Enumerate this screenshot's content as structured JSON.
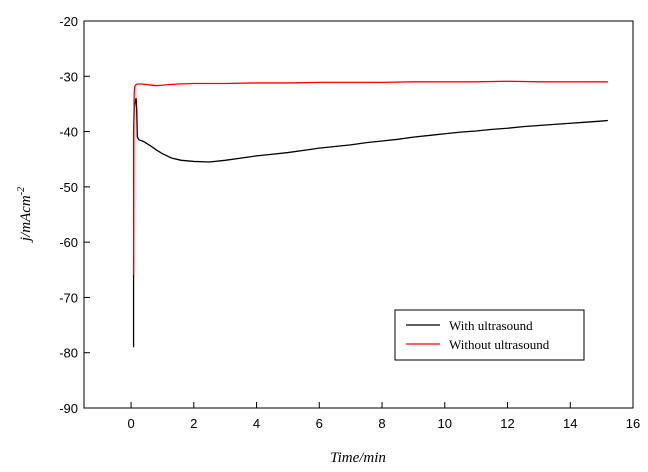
{
  "chart_data": {
    "type": "line",
    "xlabel": "Time/min",
    "ylabel": "j/mAcm",
    "ylabel_sup": "-2",
    "xlim": [
      -1.5,
      16
    ],
    "ylim": [
      -90,
      -20
    ],
    "xticks": [
      0,
      2,
      4,
      6,
      8,
      10,
      12,
      14,
      16
    ],
    "yticks": [
      -90,
      -80,
      -70,
      -60,
      -50,
      -40,
      -30,
      -20
    ],
    "grid": false,
    "legend_position": "bottom-right",
    "series": [
      {
        "name": "With ultrasound",
        "color": "#000000",
        "x": [
          0.08,
          0.08,
          0.1,
          0.13,
          0.16,
          0.18,
          0.2,
          0.25,
          0.4,
          0.6,
          0.8,
          1.0,
          1.3,
          1.6,
          2.0,
          2.5,
          3.0,
          3.5,
          4.0,
          4.5,
          5.0,
          5.5,
          6.0,
          6.5,
          7.0,
          7.5,
          8.0,
          8.5,
          9.0,
          9.5,
          10.0,
          10.5,
          11.0,
          11.5,
          12.0,
          12.5,
          13.0,
          13.5,
          14.0,
          14.5,
          15.0,
          15.2
        ],
        "y": [
          -79,
          -40,
          -36,
          -34.5,
          -34,
          -36,
          -41,
          -41.5,
          -41.8,
          -42.5,
          -43.3,
          -44,
          -44.8,
          -45.2,
          -45.4,
          -45.5,
          -45.2,
          -44.8,
          -44.4,
          -44.1,
          -43.8,
          -43.4,
          -43,
          -42.7,
          -42.4,
          -42,
          -41.7,
          -41.4,
          -41,
          -40.7,
          -40.4,
          -40.1,
          -39.9,
          -39.6,
          -39.4,
          -39.1,
          -38.9,
          -38.7,
          -38.5,
          -38.3,
          -38.1,
          -38
        ]
      },
      {
        "name": "Without ultrasound",
        "color": "#ff0000",
        "x": [
          0.08,
          0.09,
          0.1,
          0.12,
          0.16,
          0.2,
          0.3,
          0.5,
          0.8,
          1.0,
          1.5,
          2.0,
          3.0,
          4.0,
          5.0,
          6.0,
          7.0,
          8.0,
          9.0,
          10.0,
          11.0,
          12.0,
          13.0,
          14.0,
          15.0,
          15.2
        ],
        "y": [
          -66,
          -40,
          -33,
          -31.8,
          -31.5,
          -31.4,
          -31.4,
          -31.5,
          -31.7,
          -31.6,
          -31.4,
          -31.3,
          -31.3,
          -31.2,
          -31.2,
          -31.1,
          -31.1,
          -31.1,
          -31.0,
          -31.0,
          -31.0,
          -30.9,
          -31.0,
          -31.0,
          -31.0,
          -31.0
        ]
      }
    ]
  }
}
